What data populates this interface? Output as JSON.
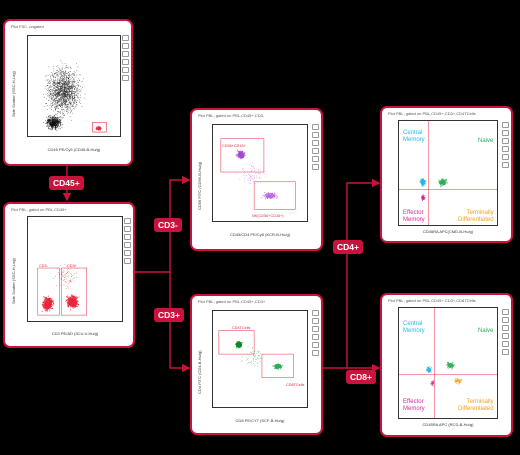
{
  "colors": {
    "accent": "#c8143c",
    "bg": "#000000",
    "cyan": "#29b6e6",
    "green": "#2eae5a",
    "magenta": "#d6289c",
    "orange": "#f5a21a",
    "red": "#e8283c"
  },
  "tags": {
    "cd45": "CD45+",
    "cd3neg": "CD3-",
    "cd3pos": "CD3+",
    "cd4": "CD4+",
    "cd8": "CD8+"
  },
  "panel1": {
    "header": "Plot FSC, ungated",
    "xlabel": "CD45 PE/Cy5 (CD45-B-Hu/g)",
    "ylabel": "Side Scatter (SSC-H,Log)"
  },
  "panel2": {
    "header": "Plot PBL, gated on PBL,CD45+",
    "xlabel": "CD3 PE/AD (3CU-V-Hu/g)",
    "ylabel": "Side Scatter (SSC-H,Log)",
    "gate_neg": "CD3-",
    "gate_pos": "CD3+"
  },
  "panel3": {
    "header": "Plot PBL, gated on PBL,CD45+,CD3-",
    "xlabel": "CD45/CD4 PE/Cy5 (KCR-B-Hu/g)",
    "ylabel": "CD56 FITC (CD56-B-Hu/g)",
    "gate_top": "CD56+CD16+",
    "gate_bottom": "NK(CD56+CD16+)"
  },
  "panel4": {
    "header": "Plot PBL, gated on PBL,CD45+,CD3+",
    "xlabel": "CD8 PE/CY7 (SCF-B-Hu/g)",
    "ylabel": "CD4 FITC (CD4-B-Hu/g)",
    "gate_top": "CD4TCells",
    "gate_bottom": "CD8TCells"
  },
  "panel5": {
    "header": "Plot PBL, gated on PBL,CD45+,CD3+,CD4TCells",
    "xlabel": "CD45RA APC(CMD-B-Hu/g)",
    "q_tl": "Central\nMemory",
    "q_tr": "Naive",
    "q_bl": "Effector\nMemory",
    "q_br": "Terminally\nDifferentiated"
  },
  "panel6": {
    "header": "Plot PBL, gated on PBL,CD45+,CD3+,CD8TCells",
    "xlabel": "CD45RA APC (RCD-B-Hu/g)",
    "q_tl": "Central\nMemory",
    "q_tr": "Naive",
    "q_bl": "Effector\nMemory",
    "q_br": "Terminally\nDifferentiated"
  }
}
